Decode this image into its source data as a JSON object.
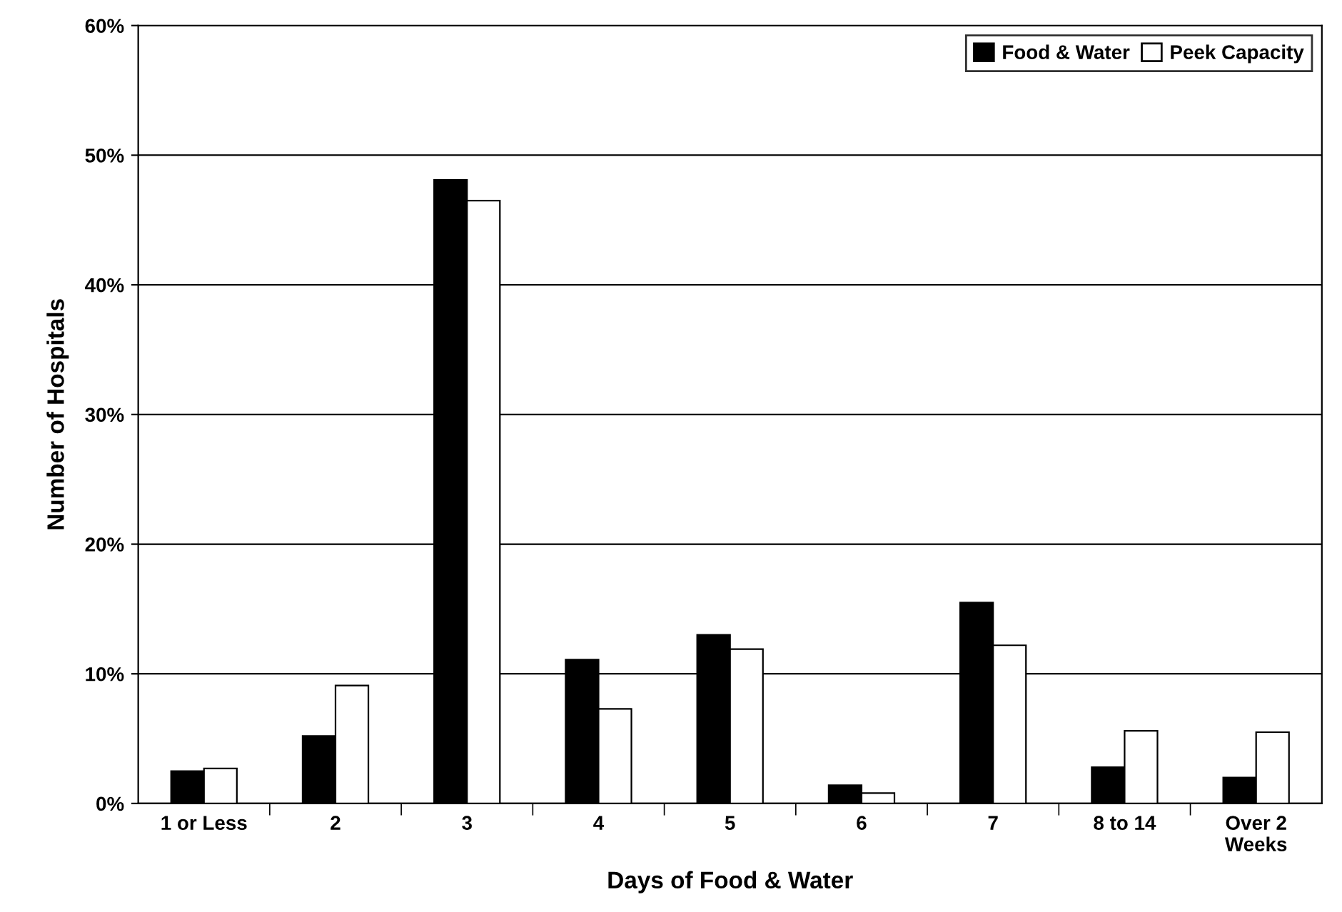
{
  "chart_data": {
    "type": "bar",
    "xlabel": "Days of Food & Water",
    "ylabel": "Number of Hospitals",
    "categories": [
      "1 or Less",
      "2",
      "3",
      "4",
      "5",
      "6",
      "7",
      "8 to 14",
      "Over 2\nWeeks"
    ],
    "series": [
      {
        "name": "Food & Water",
        "color": "#000000",
        "values": [
          2.5,
          5.2,
          48.1,
          11.1,
          13.0,
          1.4,
          15.5,
          2.8,
          2.0
        ]
      },
      {
        "name": "Peek Capacity",
        "color": "#ffffff",
        "values": [
          2.7,
          9.1,
          46.5,
          7.3,
          11.9,
          0.8,
          12.2,
          5.6,
          5.5
        ]
      }
    ],
    "ylim": [
      0,
      60
    ],
    "yticks": [
      {
        "value": 0,
        "label": "0%"
      },
      {
        "value": 10,
        "label": "10%"
      },
      {
        "value": 20,
        "label": "20%"
      },
      {
        "value": 30,
        "label": "30%"
      },
      {
        "value": 40,
        "label": "40%"
      },
      {
        "value": 50,
        "label": "50%"
      },
      {
        "value": 60,
        "label": "60%"
      }
    ],
    "grid": "y",
    "legend": "top right"
  }
}
